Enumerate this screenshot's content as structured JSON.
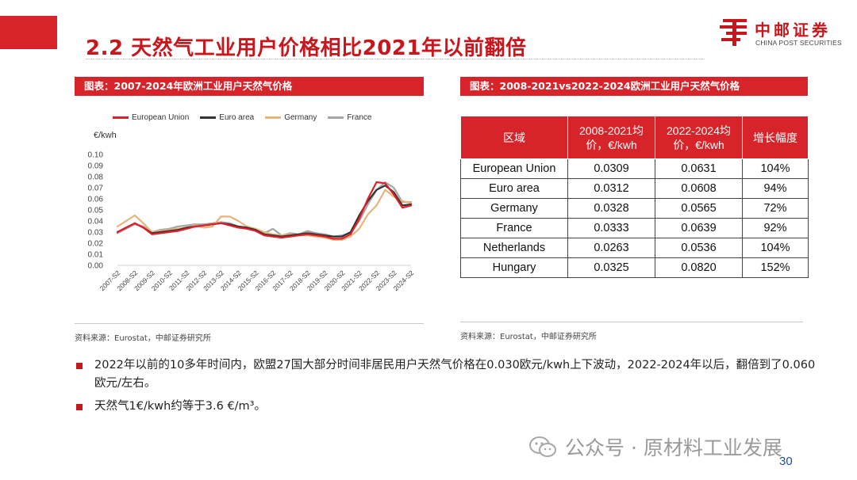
{
  "header": {
    "title": "2.2 天然气工业用户价格相比2021年以前翻倍",
    "logo_cn": "中邮证券",
    "logo_en": "CHINA POST SECURITIES"
  },
  "left_panel": {
    "heading": "图表：2007-2024年欧洲工业用户天然气价格",
    "source": "资料来源：Eurostat，中邮证券研究所"
  },
  "right_panel": {
    "heading": "图表：2008-2021vs2022-2024欧洲工业用户天然气价格",
    "source": "资料来源：Eurostat，中邮证券研究所",
    "table": {
      "headers": [
        "区域",
        "2008-2021均价，€/kwh",
        "2022-2024均价，€/kwh",
        "增长幅度"
      ],
      "rows": [
        [
          "European Union",
          "0.0309",
          "0.0631",
          "104%"
        ],
        [
          "Euro area",
          "0.0312",
          "0.0608",
          "94%"
        ],
        [
          "Germany",
          "0.0328",
          "0.0565",
          "72%"
        ],
        [
          "France",
          "0.0333",
          "0.0639",
          "92%"
        ],
        [
          "Netherlands",
          "0.0263",
          "0.0536",
          "104%"
        ],
        [
          "Hungary",
          "0.0325",
          "0.0820",
          "152%"
        ]
      ]
    }
  },
  "bullets": [
    "2022年以前的10多年时间内，欧盟27国大部分时间非居民用户天然气价格在0.030欧元/kwh上下波动，2022-2024年以后，翻倍到了0.060欧元/左右。",
    "天然气1€/kwh约等于3.6 €/m³。"
  ],
  "watermark": "公众号 · 原材料工业发展",
  "page_number": "30",
  "colors": {
    "accent_red": "#d7242a",
    "eu": "#e0202a",
    "euro_area": "#333333",
    "germany": "#e8b47a",
    "france": "#a6a6a6"
  },
  "chart_data": {
    "type": "line",
    "ylabel": "€/kwh",
    "ylim": [
      0,
      0.1
    ],
    "yticks": [
      "0.10",
      "0.09",
      "0.08",
      "0.07",
      "0.06",
      "0.05",
      "0.04",
      "0.03",
      "0.02",
      "0.01",
      "0.00"
    ],
    "categories": [
      "2007-S2",
      "2008-S1",
      "2008-S2",
      "2009-S1",
      "2009-S2",
      "2010-S1",
      "2010-S2",
      "2011-S1",
      "2011-S2",
      "2012-S1",
      "2012-S2",
      "2013-S1",
      "2013-S2",
      "2014-S1",
      "2014-S2",
      "2015-S1",
      "2015-S2",
      "2016-S1",
      "2016-S2",
      "2017-S1",
      "2017-S2",
      "2018-S1",
      "2018-S2",
      "2019-S1",
      "2019-S2",
      "2020-S1",
      "2020-S2",
      "2021-S1",
      "2021-S2",
      "2022-S1",
      "2022-S2",
      "2023-S1",
      "2023-S2",
      "2024-S1",
      "2024-S2"
    ],
    "xtick_labels": [
      "2007-S2",
      "2008-S2",
      "2009-S2",
      "2010-S2",
      "2011-S2",
      "2012-S2",
      "2013-S2",
      "2014-S2",
      "2015-S2",
      "2016-S2",
      "2017-S2",
      "2018-S2",
      "2019-S2",
      "2020-S2",
      "2021-S2",
      "2022-S2",
      "2023-S2",
      "2024-S2"
    ],
    "series": [
      {
        "name": "European Union",
        "values": [
          0.03,
          0.034,
          0.038,
          0.034,
          0.028,
          0.029,
          0.03,
          0.031,
          0.033,
          0.035,
          0.036,
          0.037,
          0.038,
          0.036,
          0.034,
          0.033,
          0.031,
          0.027,
          0.026,
          0.025,
          0.026,
          0.027,
          0.028,
          0.027,
          0.026,
          0.024,
          0.024,
          0.028,
          0.042,
          0.06,
          0.075,
          0.074,
          0.064,
          0.052,
          0.054
        ]
      },
      {
        "name": "Euro area",
        "values": [
          0.03,
          0.034,
          0.038,
          0.034,
          0.029,
          0.03,
          0.031,
          0.032,
          0.034,
          0.035,
          0.036,
          0.037,
          0.038,
          0.037,
          0.035,
          0.034,
          0.032,
          0.028,
          0.027,
          0.026,
          0.027,
          0.028,
          0.029,
          0.028,
          0.027,
          0.026,
          0.026,
          0.03,
          0.045,
          0.058,
          0.068,
          0.072,
          0.066,
          0.054,
          0.055
        ]
      },
      {
        "name": "Germany",
        "values": [
          0.035,
          0.04,
          0.045,
          0.038,
          0.03,
          0.031,
          0.032,
          0.033,
          0.034,
          0.036,
          0.034,
          0.035,
          0.044,
          0.044,
          0.04,
          0.035,
          0.033,
          0.03,
          0.028,
          0.027,
          0.028,
          0.027,
          0.027,
          0.026,
          0.025,
          0.023,
          0.023,
          0.026,
          0.033,
          0.046,
          0.054,
          0.068,
          0.062,
          0.058,
          0.056
        ]
      },
      {
        "name": "France",
        "values": [
          0.029,
          0.033,
          0.037,
          0.035,
          0.03,
          0.032,
          0.033,
          0.035,
          0.036,
          0.037,
          0.037,
          0.038,
          0.039,
          0.038,
          0.035,
          0.034,
          0.032,
          0.029,
          0.033,
          0.027,
          0.029,
          0.028,
          0.031,
          0.029,
          0.028,
          0.026,
          0.027,
          0.029,
          0.04,
          0.055,
          0.068,
          0.075,
          0.07,
          0.057,
          0.057
        ]
      }
    ],
    "legend": "top"
  }
}
